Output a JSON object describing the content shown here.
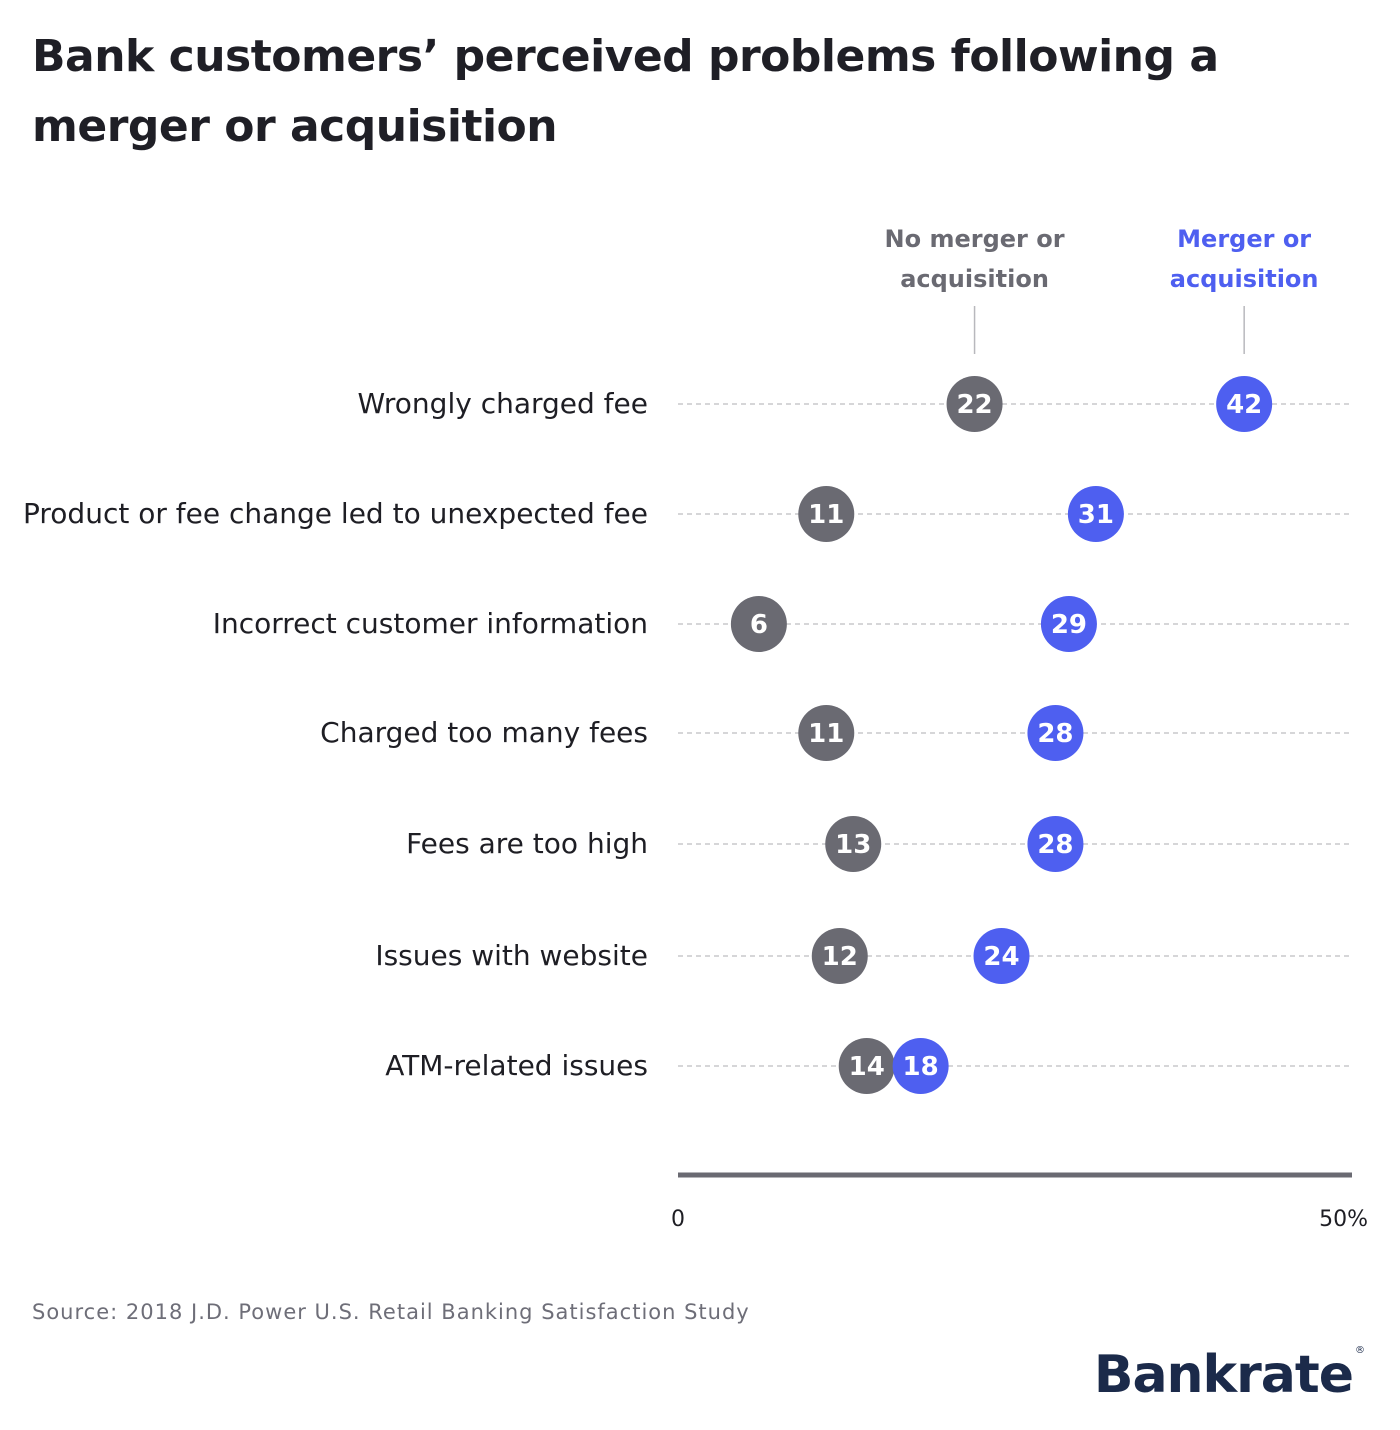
{
  "colors": {
    "no_merger": "#6a6a72",
    "merger": "#4e5ff0",
    "label_text": "#1e1e24",
    "axis": "#6a6a72",
    "gridline": "#c8c8cc"
  },
  "source": "Source: 2018 J.D. Power U.S. Retail Banking Satisfaction Study",
  "logo": {
    "text": "Bankrate",
    "mark": "®"
  },
  "chart_data": {
    "type": "dot",
    "title": "Bank customers’ perceived problems following a merger or acquisition",
    "categories": [
      "Wrongly charged fee",
      "Product or fee change led to unexpected fee",
      "Incorrect customer information",
      "Charged too many fees",
      "Fees are too high",
      "Issues with website",
      "ATM-related issues"
    ],
    "series": [
      {
        "name": "No merger or acquisition",
        "label_lines": [
          "No merger or",
          "acquisition"
        ],
        "color": "#6a6a72",
        "values": [
          22,
          11,
          6,
          11,
          13,
          12,
          14
        ]
      },
      {
        "name": "Merger or acquisition",
        "label_lines": [
          "Merger or",
          "acquisition"
        ],
        "color": "#4e5ff0",
        "values": [
          42,
          31,
          29,
          28,
          28,
          24,
          18
        ]
      }
    ],
    "xlim": [
      0,
      50
    ],
    "x_tick_labels": [
      "0",
      "50%"
    ],
    "grid": "dashed horizontal row guides",
    "legend": "top, callouts above first row"
  }
}
